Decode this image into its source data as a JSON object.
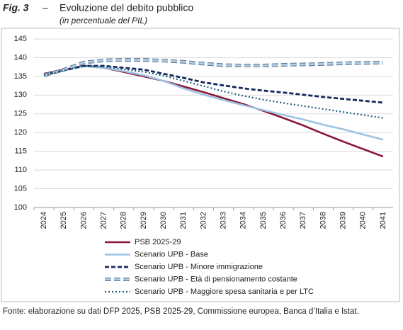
{
  "chart_data": {
    "type": "line",
    "figure_label": "Fig. 3",
    "dash_sep": "–",
    "title": "Evoluzione del debito pubblico",
    "subtitle": "(in percentuale del PIL)",
    "source": "Fonte: elaborazione su dati DFP 2025, PSB 2025-29, Commissione europea, Banca d’Italia e Istat.",
    "categories": [
      "2024",
      "2025",
      "2026",
      "2027",
      "2028",
      "2029",
      "2030",
      "2031",
      "2032",
      "2033",
      "2034",
      "2035",
      "2036",
      "2037",
      "2038",
      "2039",
      "2040",
      "2041"
    ],
    "ylim": [
      100,
      145
    ],
    "yticks": [
      100,
      105,
      110,
      115,
      120,
      125,
      130,
      135,
      140,
      145
    ],
    "grid": true,
    "legend": "bottom",
    "series": [
      {
        "name": "PSB 2025-29",
        "color": "#8b1538",
        "style": "solid",
        "values": [
          135.7,
          136.8,
          137.8,
          137.3,
          136.2,
          135.0,
          133.8,
          132.3,
          130.8,
          129.2,
          127.6,
          125.8,
          123.9,
          121.9,
          119.7,
          117.6,
          115.6,
          113.6
        ]
      },
      {
        "name": "Scenario UPB - Base",
        "color": "#9dc3e6",
        "style": "solid",
        "values": [
          135.4,
          136.6,
          137.7,
          137.3,
          136.4,
          135.3,
          133.8,
          131.8,
          130.1,
          128.7,
          127.3,
          126.0,
          124.7,
          123.5,
          122.1,
          120.9,
          119.5,
          118.1
        ]
      },
      {
        "name": "Scenario UPB - Minore immigrazione",
        "color": "#14285a",
        "style": "dashed",
        "values": [
          135.3,
          136.6,
          137.8,
          137.8,
          137.3,
          136.8,
          135.7,
          134.6,
          133.4,
          132.6,
          131.8,
          131.2,
          130.7,
          130.1,
          129.5,
          129.0,
          128.5,
          128.0
        ]
      },
      {
        "name": "Scenario UPB - Età di pensionamento costante",
        "color": "#b4cde3",
        "style": "double-dashed",
        "values": [
          135.3,
          136.8,
          138.7,
          139.3,
          139.4,
          139.4,
          139.2,
          138.9,
          138.4,
          138.0,
          137.9,
          137.9,
          138.1,
          138.2,
          138.3,
          138.5,
          138.6,
          138.7
        ]
      },
      {
        "name": "Scenario UPB - Maggiore spesa sanitaria e per LTC",
        "color": "#1f5f7a",
        "style": "dotted",
        "values": [
          135.3,
          136.6,
          137.8,
          137.6,
          136.9,
          136.2,
          135.2,
          133.8,
          132.4,
          131.0,
          129.8,
          128.8,
          127.9,
          127.1,
          126.3,
          125.5,
          124.7,
          123.9
        ]
      }
    ]
  }
}
